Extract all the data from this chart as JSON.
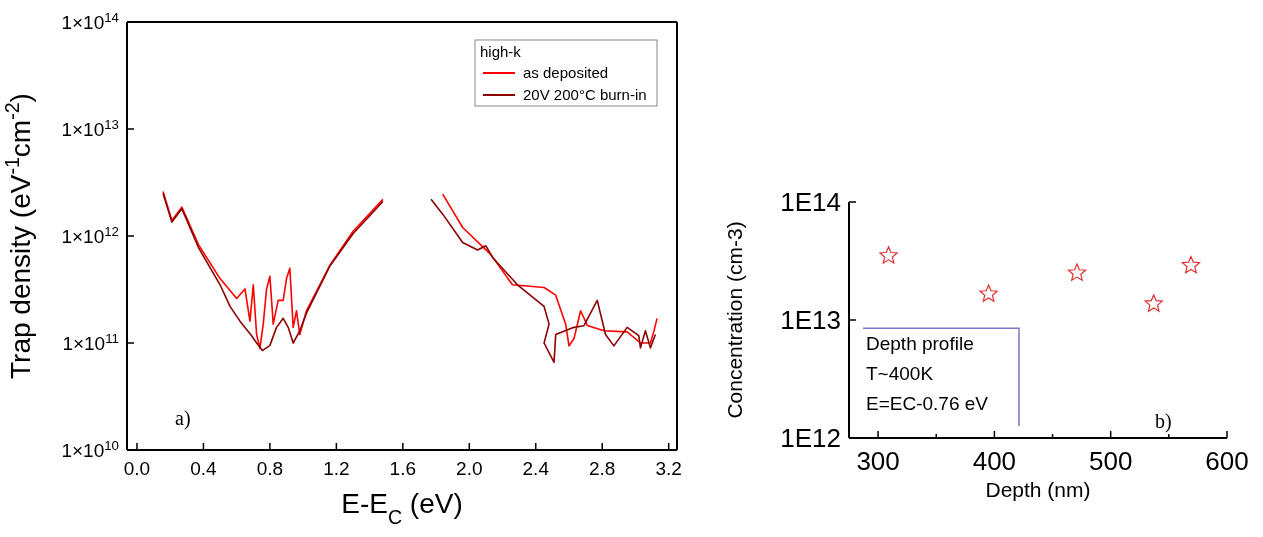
{
  "chart_data": [
    {
      "type": "line",
      "xlabel": "E-E$_{C}$ (eV)",
      "ylabel": "Trap density (eV$^{-1}$cm$^{-2}$)",
      "log": "y",
      "legend": "top right",
      "legend_title": "high-k",
      "line_style": "solid",
      "xlim": [
        -0.06,
        3.25
      ],
      "xticks": [
        {
          "value": 0,
          "label": "0.0"
        },
        0.4,
        0.8,
        1.2,
        1.6,
        {
          "value": 2,
          "label": "2.0"
        },
        2.4,
        2.8,
        3.2
      ],
      "ylim": [
        10000000000.0,
        100000000000000.0
      ],
      "yticks": [
        {
          "value": 10000000000.0,
          "label": "1×10$^{10}$"
        },
        {
          "value": 100000000000.0,
          "label": "1×10$^{11}$"
        },
        {
          "value": 1000000000000.0,
          "label": "1×10$^{12}$"
        },
        {
          "value": 10000000000000.0,
          "label": "1×10$^{13}$"
        },
        {
          "value": 100000000000000.0,
          "label": "1×10$^{14}$"
        }
      ],
      "annotations": [
        "a)"
      ],
      "series": [
        {
          "name": "as deposited",
          "color": "#ff0000",
          "x": [
            0.157,
            0.21,
            0.27,
            0.37,
            0.5,
            0.6,
            0.65,
            0.68,
            0.7,
            0.72,
            0.74,
            0.76,
            0.78,
            0.8,
            0.82,
            0.85,
            0.88,
            0.9,
            0.92,
            0.94,
            0.96,
            0.98,
            1.02,
            1.16,
            1.3,
            1.48
          ],
          "values": [
            2600000000000.0,
            1400000000000.0,
            1860000000000.0,
            830000000000.0,
            400000000000.0,
            260000000000.0,
            320000000000.0,
            160000000000.0,
            350000000000.0,
            120000000000.0,
            89000000000.0,
            150000000000.0,
            320000000000.0,
            420000000000.0,
            150000000000.0,
            250000000000.0,
            250000000000.0,
            400000000000.0,
            500000000000.0,
            140000000000.0,
            200000000000.0,
            120000000000.0,
            200000000000.0,
            530000000000.0,
            1100000000000.0,
            2200000000000.0
          ]
        },
        {
          "name": "20V 200°C burn-in",
          "color": "#8b0000",
          "x": [
            0.157,
            0.21,
            0.27,
            0.37,
            0.5,
            0.56,
            0.62,
            0.69,
            0.72,
            0.755,
            0.8,
            0.84,
            0.88,
            0.91,
            0.94,
            0.98,
            1.02,
            1.16,
            1.3,
            1.48
          ],
          "values": [
            2500000000000.0,
            1350000000000.0,
            1800000000000.0,
            780000000000.0,
            350000000000.0,
            220000000000.0,
            160000000000.0,
            117000000000.0,
            100000000000.0,
            85000000000.0,
            95000000000.0,
            140000000000.0,
            170000000000.0,
            140000000000.0,
            100000000000.0,
            130000000000.0,
            190000000000.0,
            520000000000.0,
            1050000000000.0,
            2100000000000.0
          ]
        },
        {
          "color": "#ff0000",
          "x": [
            1.84,
            1.96,
            2.13,
            2.26,
            2.45,
            2.52,
            2.58,
            2.6,
            2.63,
            2.67,
            2.71,
            2.81,
            2.95,
            3.03,
            3.09,
            3.11,
            3.13
          ],
          "values": [
            2460000000000.0,
            1200000000000.0,
            670000000000.0,
            350000000000.0,
            330000000000.0,
            280000000000.0,
            150000000000.0,
            94000000000.0,
            110000000000.0,
            200000000000.0,
            146000000000.0,
            130000000000.0,
            127000000000.0,
            100000000000.0,
            100000000000.0,
            127000000000.0,
            170000000000.0
          ]
        },
        {
          "color": "#8b0000",
          "x": [
            1.77,
            1.84,
            1.96,
            2.05,
            2.1,
            2.14,
            2.29,
            2.45,
            2.48,
            2.45,
            2.51,
            2.52,
            2.63,
            2.69,
            2.77,
            2.82,
            2.87,
            2.95,
            3.02,
            3.03,
            3.06,
            3.09,
            3.12
          ],
          "values": [
            2200000000000.0,
            1600000000000.0,
            870000000000.0,
            740000000000.0,
            810000000000.0,
            630000000000.0,
            350000000000.0,
            220000000000.0,
            150000000000.0,
            100000000000.0,
            66000000000.0,
            120000000000.0,
            140000000000.0,
            145000000000.0,
            250000000000.0,
            120000000000.0,
            94000000000.0,
            140000000000.0,
            117000000000.0,
            90000000000.0,
            130000000000.0,
            90000000000.0,
            120000000000.0
          ]
        }
      ]
    },
    {
      "type": "scatter",
      "xlabel": "Depth (nm)",
      "ylabel": "Concentration (cm-3)",
      "log": "y",
      "marker": "star",
      "legend": false,
      "xlim": [
        275,
        600
      ],
      "xticks": [
        300,
        {
          "value": 350,
          "label": null
        },
        400,
        {
          "value": 450,
          "label": null
        },
        500,
        {
          "value": 550,
          "label": null
        },
        600
      ],
      "ylim": [
        1000000000000.0,
        100000000000000.0
      ],
      "yticks": [
        {
          "value": 1000000000000.0,
          "label": "1E12"
        },
        {
          "value": 10000000000000.0,
          "label": "1E13"
        },
        {
          "value": 100000000000000.0,
          "label": "1E14"
        }
      ],
      "annotations": [
        "Depth profile",
        "T~400K",
        "E=EC-0.76 eV",
        "b)"
      ],
      "series": [
        {
          "color": "#e03030",
          "x": [
            309,
            395,
            471,
            537,
            569
          ],
          "values": [
            35000000000000.0,
            16600000000000.0,
            25000000000000.0,
            13700000000000.0,
            29000000000000.0
          ]
        }
      ]
    }
  ]
}
